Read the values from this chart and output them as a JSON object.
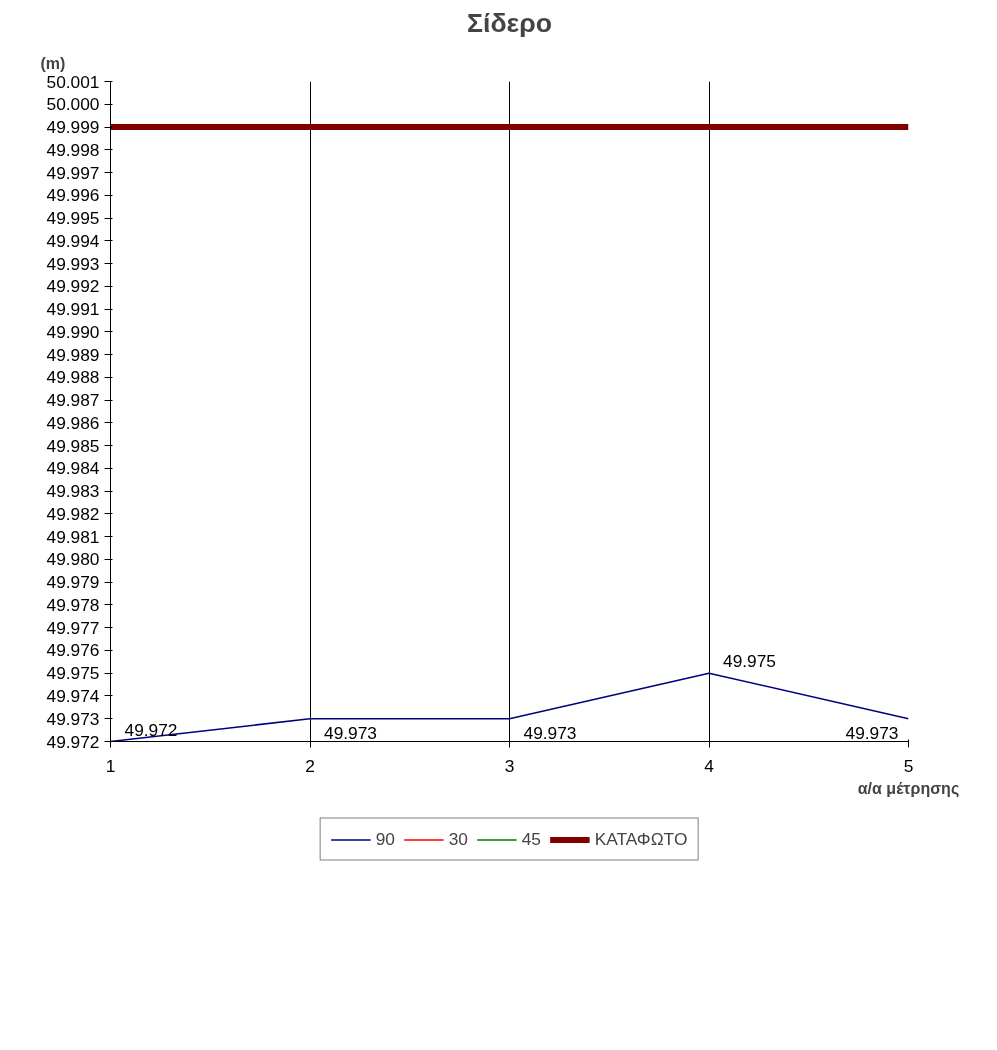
{
  "chart_data": {
    "type": "line",
    "title": "Σίδερο",
    "ylabel": "(m)",
    "xlabel": "α/α μέτρησης",
    "x": [
      1,
      2,
      3,
      4,
      5
    ],
    "series": [
      {
        "name": "90",
        "color": "#000080",
        "values": [
          49.972,
          49.973,
          49.973,
          49.975,
          49.973
        ],
        "value_labels": [
          "49.972",
          "49.973",
          "49.973",
          "49.975",
          "49.973"
        ]
      },
      {
        "name": "30",
        "color": "#ff0000",
        "values": [
          null,
          null,
          null,
          null,
          null
        ]
      },
      {
        "name": "45",
        "color": "#008000",
        "values": [
          null,
          null,
          null,
          null,
          null
        ]
      },
      {
        "name": "ΚΑΤΑΦΩΤΟ",
        "color": "#800000",
        "values": [
          49.999,
          49.999,
          49.999,
          49.999,
          49.999
        ]
      }
    ],
    "xlim": [
      1,
      5
    ],
    "xticks": [
      1,
      2,
      3,
      4,
      5
    ],
    "ylim": [
      49.972,
      50.001
    ],
    "yticks": [
      49.972,
      49.973,
      49.974,
      49.975,
      49.976,
      49.977,
      49.978,
      49.979,
      {
        "value": 49.98,
        "label": "49.980"
      },
      49.981,
      49.982,
      49.983,
      49.984,
      49.985,
      49.986,
      49.987,
      49.988,
      49.989,
      {
        "value": 49.99,
        "label": "49.990"
      },
      49.991,
      49.992,
      49.993,
      49.994,
      49.995,
      49.996,
      49.997,
      49.998,
      49.999,
      {
        "value": 50.0,
        "label": "50.000"
      },
      50.001
    ],
    "grid": "x",
    "legend": "bottom",
    "marker": "none",
    "line_style": "solid"
  }
}
